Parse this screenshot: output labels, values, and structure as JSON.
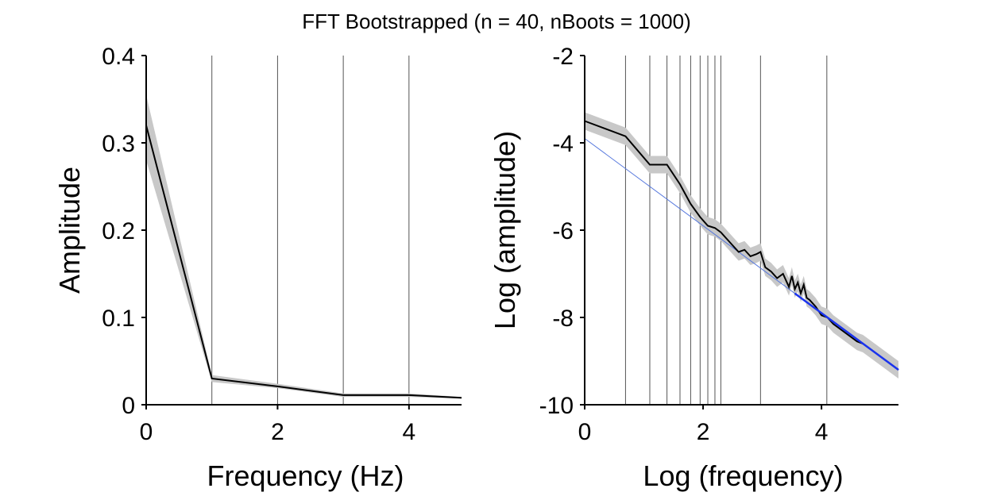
{
  "figure": {
    "title": "FFT Bootstrapped (n = 40, nBoots = 1000)"
  },
  "chart_data": [
    {
      "type": "line",
      "xlabel": "Frequency (Hz)",
      "ylabel": "Amplitude",
      "xlim": [
        0,
        4.8
      ],
      "ylim": [
        0,
        0.4
      ],
      "xticks": [
        0,
        2,
        4
      ],
      "xtick_labels": [
        "0",
        "2",
        "4"
      ],
      "yticks": [
        0,
        0.1,
        0.2,
        0.3,
        0.4
      ],
      "ytick_labels": [
        "0",
        "0.1",
        "0.2",
        "0.3",
        "0.4"
      ],
      "grid": false,
      "vlines": [
        1,
        2,
        3,
        4
      ],
      "vline_color": "#555555",
      "series": [
        {
          "x": [
            0,
            1,
            2,
            3,
            4,
            4.8
          ],
          "y": [
            0.32,
            0.03,
            0.021,
            0.011,
            0.011,
            0.008
          ],
          "ci_low": [
            0.28,
            0.026,
            0.019,
            0.009,
            0.009,
            0.007
          ],
          "ci_high": [
            0.355,
            0.034,
            0.024,
            0.013,
            0.013,
            0.009
          ],
          "color": "#000000",
          "band_color": "#c8c8c8"
        }
      ]
    },
    {
      "type": "line",
      "xlabel": "Log (frequency)",
      "ylabel": "Log (amplitude)",
      "xlim": [
        0,
        5.3
      ],
      "ylim": [
        -10,
        -2
      ],
      "xticks": [
        0,
        2,
        4
      ],
      "xtick_labels": [
        "0",
        "2",
        "4"
      ],
      "yticks": [
        -10,
        -8,
        -6,
        -4,
        -2
      ],
      "ytick_labels": [
        "-10",
        "-8",
        "-6",
        "-4",
        "-2"
      ],
      "grid": false,
      "vlines": [
        0.69,
        1.1,
        1.39,
        1.61,
        1.79,
        1.95,
        2.08,
        2.2,
        2.3,
        2.97,
        4.09
      ],
      "vline_color": "#555555",
      "series": [
        {
          "x": [
            0,
            0.69,
            1.1,
            1.39,
            1.61,
            1.79,
            1.95,
            2.08,
            2.2,
            2.3,
            2.4,
            2.5,
            2.6,
            2.7,
            2.8,
            2.9,
            2.97,
            3.05,
            3.15,
            3.25,
            3.35,
            3.45,
            3.5,
            3.55,
            3.6,
            3.65,
            3.7,
            3.75,
            3.8,
            3.9,
            4.0,
            4.1,
            4.2,
            4.3,
            4.4,
            4.5,
            4.6,
            4.7,
            4.8,
            4.9,
            5.0,
            5.1,
            5.2,
            5.3
          ],
          "y": [
            -3.5,
            -3.85,
            -4.5,
            -4.5,
            -4.95,
            -5.4,
            -5.7,
            -5.9,
            -5.95,
            -6.05,
            -6.2,
            -6.35,
            -6.5,
            -6.45,
            -6.6,
            -6.55,
            -6.5,
            -6.85,
            -6.95,
            -7.1,
            -7.0,
            -7.3,
            -7.05,
            -7.35,
            -7.2,
            -7.45,
            -7.25,
            -7.55,
            -7.6,
            -7.75,
            -7.95,
            -8.0,
            -8.15,
            -8.25,
            -8.35,
            -8.45,
            -8.55,
            -8.6,
            -8.7,
            -8.8,
            -8.9,
            -9.0,
            -9.1,
            -9.2
          ],
          "band_halfwidth": 0.2,
          "color": "#000000",
          "band_color": "#c8c8c8"
        }
      ],
      "fit_line": {
        "x0": 0,
        "y0": -3.9,
        "x1": 5.3,
        "y1": -9.2,
        "color": "#5577dd"
      },
      "fit_segment": {
        "x0": 3.55,
        "y0": -7.45,
        "x1": 5.3,
        "y1": -9.2,
        "color": "#1a33ee"
      }
    }
  ]
}
